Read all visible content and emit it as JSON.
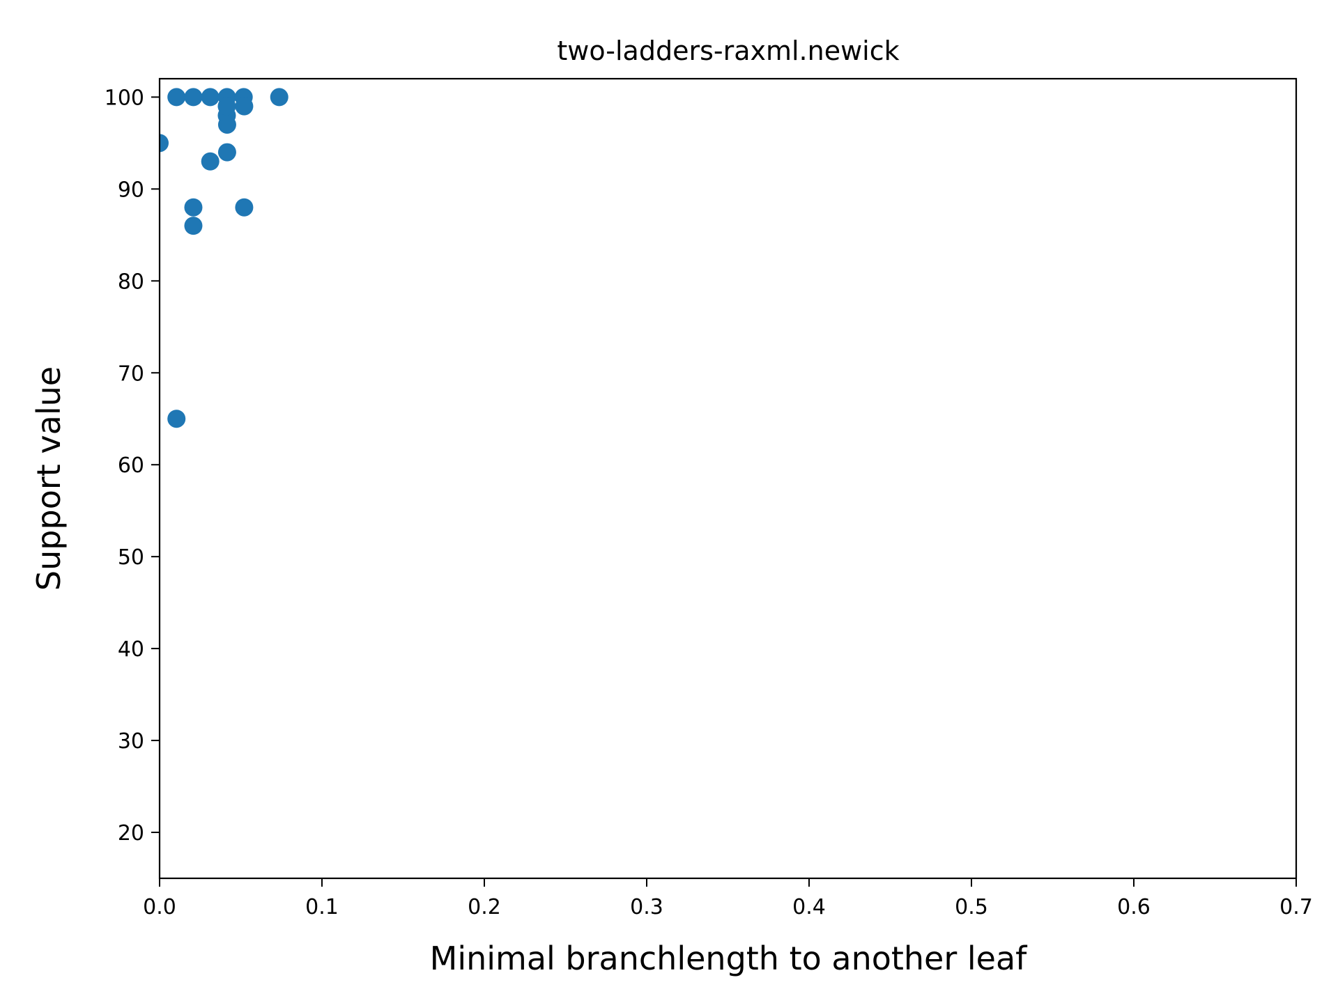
{
  "chart_data": {
    "type": "scatter",
    "title": "two-ladders-raxml.newick",
    "xlabel": "Minimal branchlength to another leaf",
    "ylabel": "Support value",
    "xlim": [
      0.0,
      0.7
    ],
    "ylim": [
      15,
      102
    ],
    "x_ticks": [
      "0.0",
      "0.1",
      "0.2",
      "0.3",
      "0.4",
      "0.5",
      "0.6",
      "0.7"
    ],
    "y_ticks": [
      "20",
      "30",
      "40",
      "50",
      "60",
      "70",
      "80",
      "90",
      "100"
    ],
    "grid": false,
    "marker_color": "#1f77b4",
    "series": [
      {
        "x": [
          0.0,
          0.0104,
          0.0208,
          0.0312,
          0.0415,
          0.0518,
          0.0737,
          0.0414,
          0.0521,
          0.0414,
          0.0416,
          0.0416,
          0.0312,
          0.0208,
          0.0521,
          0.0208,
          0.0104
        ],
        "y": [
          95,
          100,
          100,
          100,
          100,
          100,
          100,
          98,
          99,
          99,
          97,
          94,
          93,
          88,
          88,
          86,
          65
        ]
      }
    ]
  }
}
